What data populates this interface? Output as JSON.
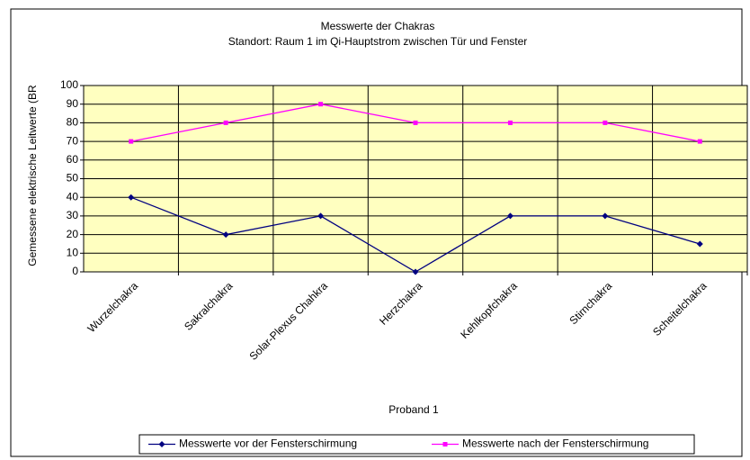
{
  "chart_data": {
    "type": "line",
    "title": "Messwerte der Chakras",
    "subtitle": "Standort: Raum 1 im Qi-Hauptstrom zwischen Tür und Fenster",
    "x_label": "Proband 1",
    "y_label": "Gemessene elektrische Leitwerte (BR",
    "categories": [
      "Wurzelchakra",
      "Sakralchakra",
      "Solar-Plexus Chahkra",
      "Herzchakra",
      "Kehlkopfchakra",
      "Stirnchakra",
      "Scheitelchakra"
    ],
    "series": [
      {
        "name": "Messwerte vor der Fensterschirmung",
        "color": "#000080",
        "marker": "diamond",
        "values": [
          40,
          20,
          30,
          0,
          30,
          30,
          15
        ]
      },
      {
        "name": "Messwerte nach der Fensterschirmung",
        "color": "#ff00ff",
        "marker": "square",
        "values": [
          70,
          80,
          90,
          80,
          80,
          80,
          70
        ]
      }
    ],
    "ylim": [
      0,
      100
    ],
    "yticks": [
      0,
      10,
      20,
      30,
      40,
      50,
      60,
      70,
      80,
      90,
      100
    ],
    "grid": true,
    "plot_background": "#ffffc0",
    "legend": "bottom"
  }
}
